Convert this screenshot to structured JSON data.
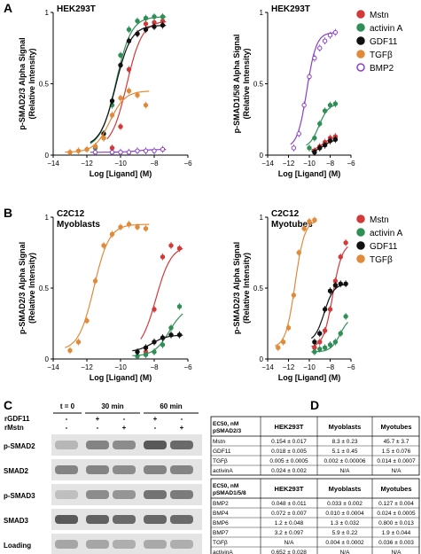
{
  "colors": {
    "Mstn": "#d23a3a",
    "activin A": "#2f8f57",
    "GDF11": "#111111",
    "TGFβ": "#e08a3a",
    "BMP2": "#8a3fc4"
  },
  "panel_labels": [
    "A",
    "B",
    "C",
    "D"
  ],
  "chart_data": [
    {
      "type": "scatter",
      "panel": "A",
      "cell_label": "HEK293T",
      "ylabel_line1": "p-SMAD2/3 Alpha Signal",
      "ylabel_line2": "(Relative Intensity)",
      "xlabel": "Log [Ligand] (M)",
      "xlim": [
        -14,
        -6
      ],
      "ylim": [
        0,
        1
      ],
      "x_ticks": [
        -14,
        -12,
        -10,
        -8,
        -6
      ],
      "y_ticks": [
        0,
        0.5,
        1
      ],
      "series": [
        {
          "name": "Mstn",
          "x": [
            -10.5,
            -10,
            -9.5,
            -9,
            -8.5,
            -8,
            -7.5
          ],
          "y": [
            0.05,
            0.2,
            0.6,
            0.85,
            0.92,
            0.93,
            0.94
          ]
        },
        {
          "name": "activin A",
          "x": [
            -11.5,
            -11,
            -10.5,
            -10,
            -9.5,
            -9,
            -8.5,
            -8,
            -7.5
          ],
          "y": [
            0.05,
            0.12,
            0.35,
            0.7,
            0.88,
            0.94,
            0.96,
            0.97,
            0.97
          ]
        },
        {
          "name": "GDF11",
          "x": [
            -11.5,
            -11,
            -10.5,
            -10,
            -9.5,
            -9,
            -8.5,
            -8,
            -7.5
          ],
          "y": [
            0.06,
            0.15,
            0.38,
            0.63,
            0.8,
            0.85,
            0.88,
            0.9,
            0.91
          ]
        },
        {
          "name": "TGFβ",
          "x": [
            -13,
            -12.5,
            -12,
            -11.5,
            -11,
            -10.5,
            -10,
            -9.5,
            -9,
            -8.5
          ],
          "y": [
            0.02,
            0.03,
            0.04,
            0.06,
            0.12,
            0.28,
            0.4,
            0.45,
            0.42,
            0.35
          ]
        },
        {
          "name": "BMP2",
          "x": [
            -11.5,
            -10.5,
            -10,
            -9.5,
            -9,
            -8.5,
            -8,
            -7.5
          ],
          "y": [
            0.02,
            0.02,
            0.02,
            0.02,
            0.03,
            0.03,
            0.03,
            0.04
          ]
        }
      ]
    },
    {
      "type": "scatter",
      "panel": "A",
      "cell_label": "HEK293T",
      "ylabel_line1": "p-SMAD1/5/8 Alpha Signal",
      "ylabel_line2": "(Relative Intensity)",
      "xlabel": "Log [Ligand] (M)",
      "xlim": [
        -14,
        -6
      ],
      "ylim": [
        0,
        1
      ],
      "x_ticks": [
        -14,
        -12,
        -10,
        -8,
        -6
      ],
      "y_ticks": [
        0,
        0.5,
        1
      ],
      "legend": [
        "Mstn",
        "activin A",
        "GDF11",
        "TGFβ",
        "BMP2"
      ],
      "series": [
        {
          "name": "Mstn",
          "x": [
            -9.5,
            -9,
            -8.5,
            -8,
            -7.5
          ],
          "y": [
            0.03,
            0.06,
            0.09,
            0.12,
            0.13
          ]
        },
        {
          "name": "activin A",
          "x": [
            -10,
            -9.5,
            -9,
            -8.5,
            -8,
            -7.5
          ],
          "y": [
            0.05,
            0.12,
            0.22,
            0.31,
            0.35,
            0.36
          ]
        },
        {
          "name": "GDF11",
          "x": [
            -9.5,
            -9,
            -8.5,
            -8,
            -7.5
          ],
          "y": [
            0.02,
            0.05,
            0.07,
            0.1,
            0.11
          ]
        },
        {
          "name": "BMP2",
          "x": [
            -11.5,
            -11,
            -10.5,
            -10,
            -9.5,
            -9,
            -8.5,
            -8,
            -7.5
          ],
          "y": [
            0.05,
            0.15,
            0.35,
            0.55,
            0.68,
            0.75,
            0.8,
            0.84,
            0.86
          ]
        }
      ]
    },
    {
      "type": "scatter",
      "panel": "B",
      "cell_label_line1": "C2C12",
      "cell_label_line2": "Myoblasts",
      "ylabel_line1": "p-SMAD2/3 Alpha Signal",
      "ylabel_line2": "(Relative Intensity)",
      "xlabel": "Log [Ligand] (M)",
      "xlim": [
        -14,
        -6
      ],
      "ylim": [
        0,
        1
      ],
      "x_ticks": [
        -14,
        -12,
        -10,
        -8,
        -6
      ],
      "y_ticks": [
        0,
        0.5,
        1
      ],
      "series": [
        {
          "name": "Mstn",
          "x": [
            -8.5,
            -8,
            -7.5,
            -7,
            -6.5
          ],
          "y": [
            0.05,
            0.35,
            0.72,
            0.8,
            0.78
          ]
        },
        {
          "name": "activin A",
          "x": [
            -9,
            -8.5,
            -8,
            -7.5,
            -7,
            -6.5
          ],
          "y": [
            0.02,
            0.03,
            0.05,
            0.1,
            0.22,
            0.37
          ]
        },
        {
          "name": "GDF11",
          "x": [
            -9,
            -8.5,
            -8,
            -7.5,
            -7,
            -6.5
          ],
          "y": [
            0.05,
            0.08,
            0.12,
            0.15,
            0.17,
            0.17
          ]
        },
        {
          "name": "TGFβ",
          "x": [
            -13,
            -12.5,
            -12,
            -11.5,
            -11,
            -10.5,
            -10,
            -9.5,
            -9,
            -8.5
          ],
          "y": [
            0.06,
            0.12,
            0.27,
            0.55,
            0.8,
            0.88,
            0.93,
            0.95,
            0.93,
            0.92
          ]
        }
      ]
    },
    {
      "type": "scatter",
      "panel": "B",
      "cell_label_line1": "C2C12",
      "cell_label_line2": "Myotubes",
      "ylabel_line1": "p-SMAD2/3 Alpha Signal",
      "ylabel_line2": "(Relative Intensity)",
      "xlabel": "Log [Ligand] (M)",
      "xlim": [
        -14,
        -6
      ],
      "ylim": [
        0,
        1
      ],
      "x_ticks": [
        -14,
        -12,
        -10,
        -8,
        -6
      ],
      "y_ticks": [
        0,
        0.5,
        1
      ],
      "legend": [
        "Mstn",
        "activin A",
        "GDF11",
        "TGFβ"
      ],
      "series": [
        {
          "name": "Mstn",
          "x": [
            -9.5,
            -9,
            -8.5,
            -8,
            -7.5,
            -7,
            -6.5
          ],
          "y": [
            0.08,
            0.12,
            0.2,
            0.35,
            0.55,
            0.72,
            0.82
          ]
        },
        {
          "name": "activin A",
          "x": [
            -9.5,
            -9,
            -8.5,
            -8,
            -7.5,
            -7,
            -6.5
          ],
          "y": [
            0.05,
            0.07,
            0.08,
            0.1,
            0.12,
            0.18,
            0.3
          ]
        },
        {
          "name": "GDF11",
          "x": [
            -9.5,
            -9,
            -8.5,
            -8,
            -7.5,
            -7,
            -6.5
          ],
          "y": [
            0.12,
            0.18,
            0.35,
            0.48,
            0.52,
            0.53,
            0.53
          ]
        },
        {
          "name": "TGFβ",
          "x": [
            -13,
            -12.5,
            -12,
            -11.5,
            -11,
            -10.5,
            -10,
            -9.5
          ],
          "y": [
            0.08,
            0.12,
            0.22,
            0.45,
            0.75,
            0.92,
            0.97,
            0.98
          ]
        }
      ]
    }
  ],
  "western": {
    "time_labels": [
      "t = 0",
      "30 min",
      "60 min"
    ],
    "condition_labels": [
      "rGDF11",
      "rMstn"
    ],
    "condition_signs": [
      [
        "-",
        "+",
        "-",
        "+",
        "-"
      ],
      [
        "-",
        "-",
        "+",
        "-",
        "+"
      ]
    ],
    "row_labels": [
      "p-SMAD2",
      "SMAD2",
      "p-SMAD3",
      "SMAD3",
      "Loading"
    ],
    "band_intensity": [
      [
        0.25,
        0.55,
        0.5,
        0.8,
        0.7
      ],
      [
        0.55,
        0.55,
        0.5,
        0.55,
        0.55
      ],
      [
        0.2,
        0.5,
        0.45,
        0.65,
        0.6
      ],
      [
        0.8,
        0.75,
        0.7,
        0.72,
        0.7
      ],
      [
        0.35,
        0.35,
        0.3,
        0.33,
        0.3
      ]
    ]
  },
  "tables": [
    {
      "header": [
        "EC50, nM\npSMAD2/3",
        "HEK293T",
        "Myoblasts",
        "Myotubes"
      ],
      "rows": [
        [
          "Mstn",
          "0.154 ± 0.017",
          "8.3 ± 0.23",
          "45.7 ± 3.7"
        ],
        [
          "GDF11",
          "0.018 ± 0.005",
          "5.1 ± 0.45",
          "1.5 ± 0.076"
        ],
        [
          "TGFβ",
          "0.005 ± 0.0005",
          "0.002 ± 0.00006",
          "0.014 ± 0.0007"
        ],
        [
          "activinA",
          "0.024 ± 0.002",
          "N/A",
          "N/A"
        ]
      ]
    },
    {
      "header": [
        "EC50, nM\npSMAD1/5/8",
        "HEK293T",
        "Myoblasts",
        "Myotubes"
      ],
      "rows": [
        [
          "BMP2",
          "0.048 ± 0.011",
          "0.033 ± 0.002",
          "0.127 ± 0.004"
        ],
        [
          "BMP4",
          "0.072 ± 0.007",
          "0.010 ± 0.0004",
          "0.024 ± 0.0005"
        ],
        [
          "BMP6",
          "1.2 ± 0.048",
          "1.3 ± 0.032",
          "0.800 ± 0.013"
        ],
        [
          "BMP7",
          "3.2 ± 0.097",
          "5.9 ± 0.22",
          "1.9 ± 0.044"
        ],
        [
          "TGFβ",
          "N/A",
          "0.004 ± 0.0002",
          "0.036 ± 0.003"
        ],
        [
          "activinA",
          "0.652 ± 0.028",
          "N/A",
          "N/A"
        ]
      ]
    }
  ]
}
